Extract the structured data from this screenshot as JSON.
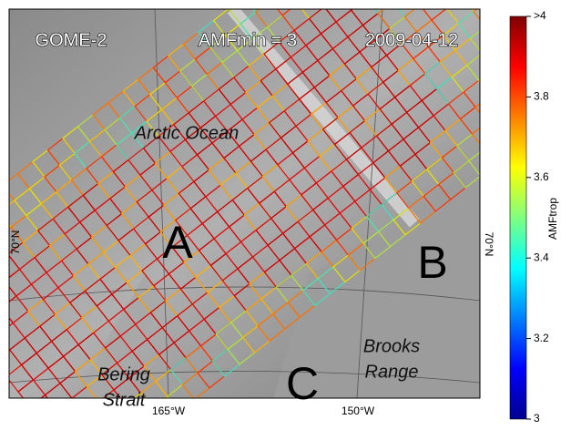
{
  "map": {
    "instrument": "GOME-2",
    "setting": "AMFmin = 3",
    "date": "2009-04-12",
    "labels": {
      "ocean": "Arctic Ocean",
      "a": "A",
      "b": "B",
      "c": "C",
      "range": [
        "Brooks",
        "Range"
      ],
      "strait": [
        "Bering",
        "Strait"
      ]
    },
    "lat_labels": [
      "70°N",
      "70°N"
    ],
    "lon_labels": [
      "165°W",
      "150°W"
    ]
  },
  "colorbar": {
    "label": "AMFtrop",
    "lim": [
      3,
      4
    ],
    "ticks": [
      3,
      3.2,
      3.4,
      3.6,
      3.8,
      {
        "value": 4,
        "label": ">4"
      }
    ]
  }
}
